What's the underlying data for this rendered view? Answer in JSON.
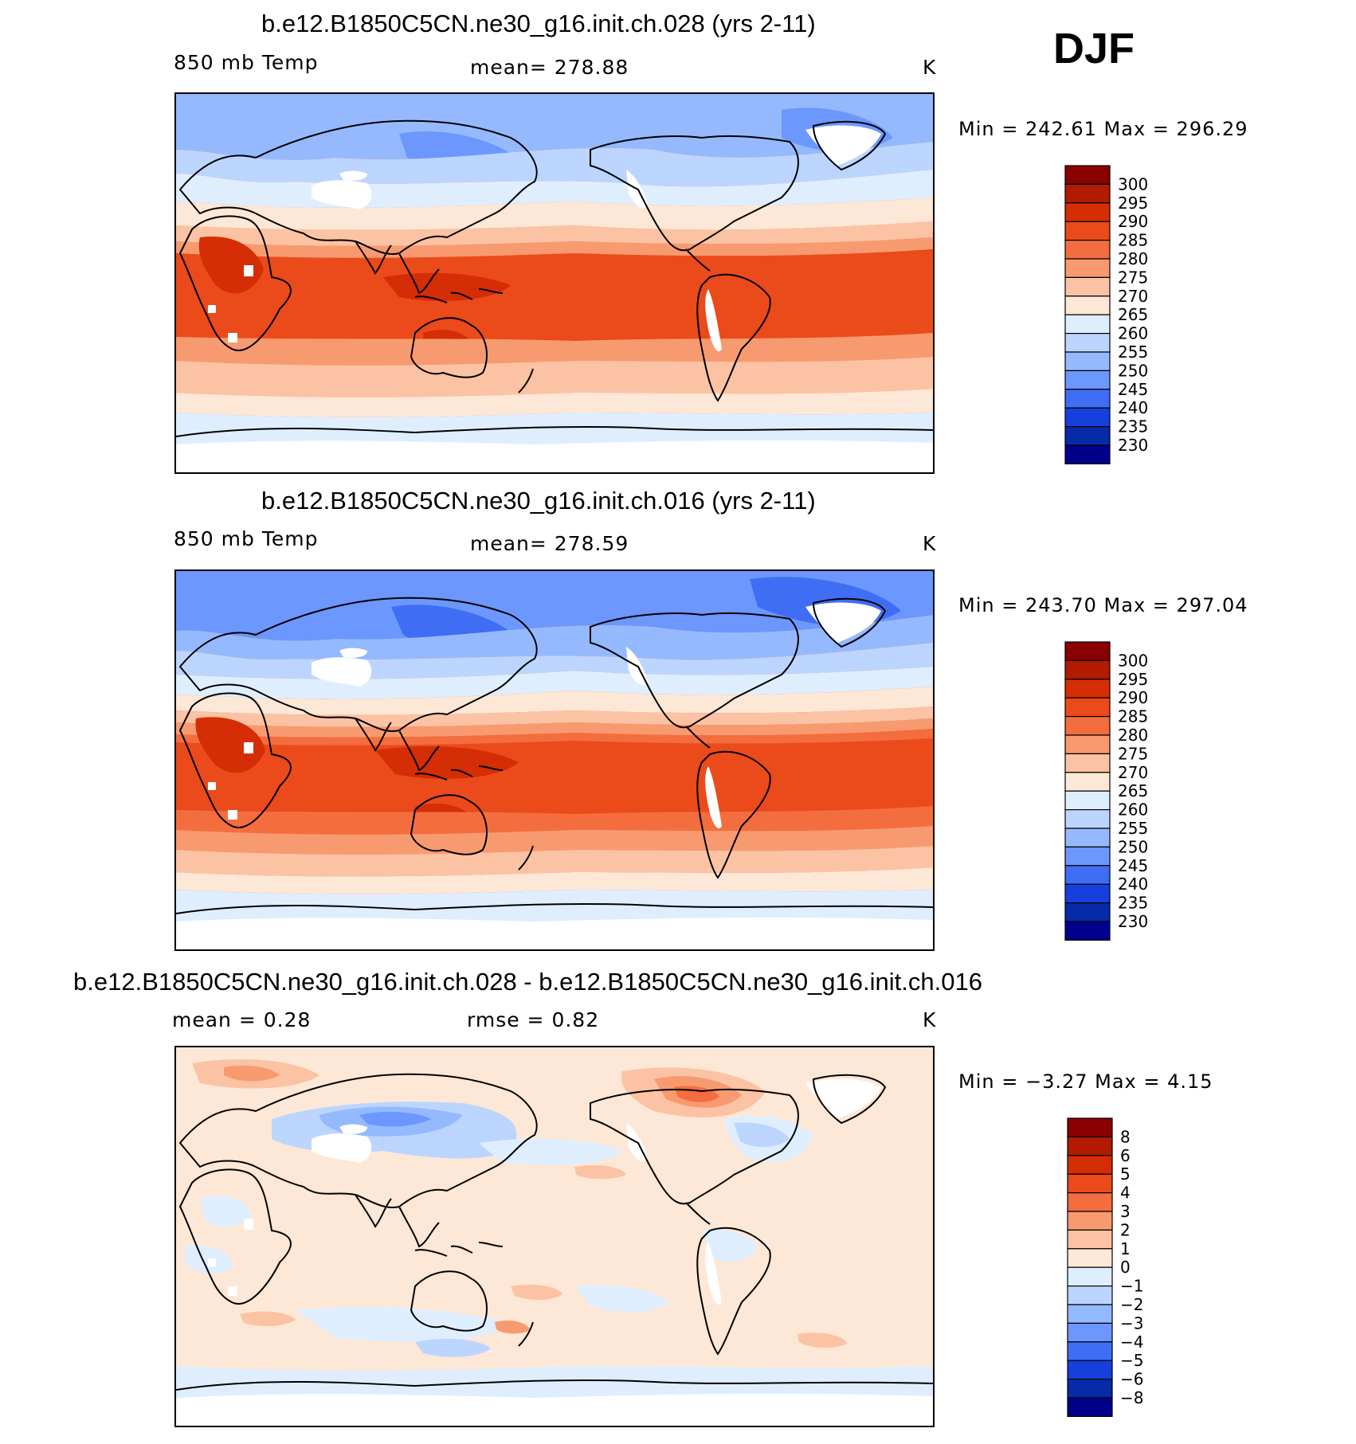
{
  "season": "DJF",
  "units": "K",
  "panels": [
    {
      "title": "b.e12.B1850C5CN.ne30_g16.init.ch.028 (yrs 2-11)",
      "var_label": "850 mb Temp",
      "mean_text": "mean=  278.88",
      "units": "K",
      "min_max": "Min  =  242.61  Max  =  296.29"
    },
    {
      "title": "b.e12.B1850C5CN.ne30_g16.init.ch.016 (yrs 2-11)",
      "var_label": "850 mb Temp",
      "mean_text": "mean=  278.59",
      "units": "K",
      "min_max": "Min  =  243.70  Max  =  297.04"
    },
    {
      "title": "b.e12.B1850C5CN.ne30_g16.init.ch.028 - b.e12.B1850C5CN.ne30_g16.init.ch.016",
      "mean_text": "mean =     0.28",
      "rmse_text": "rmse =     0.82",
      "units": "K",
      "min_max": "Min  =    −3.27  Max  =     4.15"
    }
  ],
  "chart_data": [
    {
      "type": "heatmap",
      "title": "b.e12.B1850C5CN.ne30_g16.init.ch.028 (yrs 2-11)",
      "variable": "850 mb Temp",
      "mean": 278.88,
      "min": 242.61,
      "max": 296.29,
      "colorbar_levels": [
        "300",
        "295",
        "290",
        "285",
        "280",
        "275",
        "270",
        "265",
        "260",
        "255",
        "250",
        "245",
        "240",
        "235",
        "230"
      ],
      "colorbar_colors": [
        "#8b0000",
        "#b31b00",
        "#d52d05",
        "#eb4a1a",
        "#f46d3e",
        "#f89a70",
        "#fbc3a3",
        "#fde7d6",
        "#dfeeff",
        "#bcd5ff",
        "#95b9ff",
        "#6b97ff",
        "#3f6ef5",
        "#1640dd",
        "#062aa8",
        "#00008b"
      ]
    },
    {
      "type": "heatmap",
      "title": "b.e12.B1850C5CN.ne30_g16.init.ch.016 (yrs 2-11)",
      "variable": "850 mb Temp",
      "mean": 278.59,
      "min": 243.7,
      "max": 297.04,
      "colorbar_levels": [
        "300",
        "295",
        "290",
        "285",
        "280",
        "275",
        "270",
        "265",
        "260",
        "255",
        "250",
        "245",
        "240",
        "235",
        "230"
      ],
      "colorbar_colors": [
        "#8b0000",
        "#b31b00",
        "#d52d05",
        "#eb4a1a",
        "#f46d3e",
        "#f89a70",
        "#fbc3a3",
        "#fde7d6",
        "#dfeeff",
        "#bcd5ff",
        "#95b9ff",
        "#6b97ff",
        "#3f6ef5",
        "#1640dd",
        "#062aa8",
        "#00008b"
      ]
    },
    {
      "type": "heatmap",
      "title": "b.e12.B1850C5CN.ne30_g16.init.ch.028 - b.e12.B1850C5CN.ne30_g16.init.ch.016",
      "mean": 0.28,
      "rmse": 0.82,
      "min": -3.27,
      "max": 4.15,
      "colorbar_levels": [
        "8",
        "6",
        "5",
        "4",
        "3",
        "2",
        "1",
        "0",
        "−1",
        "−2",
        "−3",
        "−4",
        "−5",
        "−6",
        "−8"
      ],
      "colorbar_colors": [
        "#8b0000",
        "#b31b00",
        "#d52d05",
        "#eb4a1a",
        "#f46d3e",
        "#f89a70",
        "#fbc3a3",
        "#fde7d6",
        "#dfeeff",
        "#bcd5ff",
        "#95b9ff",
        "#6b97ff",
        "#3f6ef5",
        "#1640dd",
        "#062aa8",
        "#00008b"
      ]
    }
  ]
}
